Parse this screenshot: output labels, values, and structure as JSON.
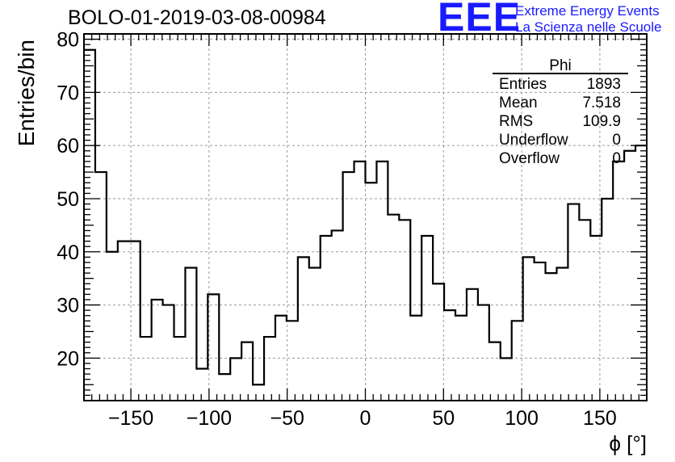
{
  "header": {
    "run_title": "BOLO-01-2019-03-08-00984",
    "logo_text": "EEE",
    "logo_line1": "Extreme Energy Events",
    "logo_line2": "La Scienza nelle Scuole",
    "logo_color": "#1a1aff"
  },
  "chart_data": {
    "type": "histogram",
    "xlabel": "ϕ [°]",
    "ylabel": "Entries/bin",
    "xlim": [
      -180,
      180
    ],
    "ylim": [
      12,
      81
    ],
    "xticks": [
      -150,
      -100,
      -50,
      0,
      50,
      100,
      150
    ],
    "xtick_labels": [
      "−150",
      "−100",
      "−50",
      "0",
      "50",
      "100",
      "150"
    ],
    "yticks": [
      20,
      30,
      40,
      50,
      60,
      70,
      80
    ],
    "ytick_labels": [
      "20",
      "30",
      "40",
      "50",
      "60",
      "70",
      "80"
    ],
    "grid": true,
    "line_color": "#000000",
    "bin_edges_start": -180,
    "bin_width": 7.2,
    "values": [
      78,
      55,
      40,
      42,
      42,
      24,
      31,
      30,
      24,
      37,
      18,
      32,
      17,
      20,
      23,
      15,
      24,
      28,
      27,
      39,
      37,
      43,
      44,
      55,
      57,
      53,
      57,
      47,
      46,
      28,
      43,
      34,
      29,
      28,
      33,
      30,
      23,
      20,
      27,
      39,
      38,
      36,
      37,
      49,
      46,
      43,
      50,
      57,
      59,
      60
    ],
    "stats_box": {
      "title": "Phi",
      "rows": [
        {
          "label": "Entries",
          "value": "1893"
        },
        {
          "label": "Mean",
          "value": "7.518"
        },
        {
          "label": "RMS",
          "value": "109.9"
        },
        {
          "label": "Underflow",
          "value": "0"
        },
        {
          "label": "Overflow",
          "value": "0"
        }
      ]
    }
  }
}
